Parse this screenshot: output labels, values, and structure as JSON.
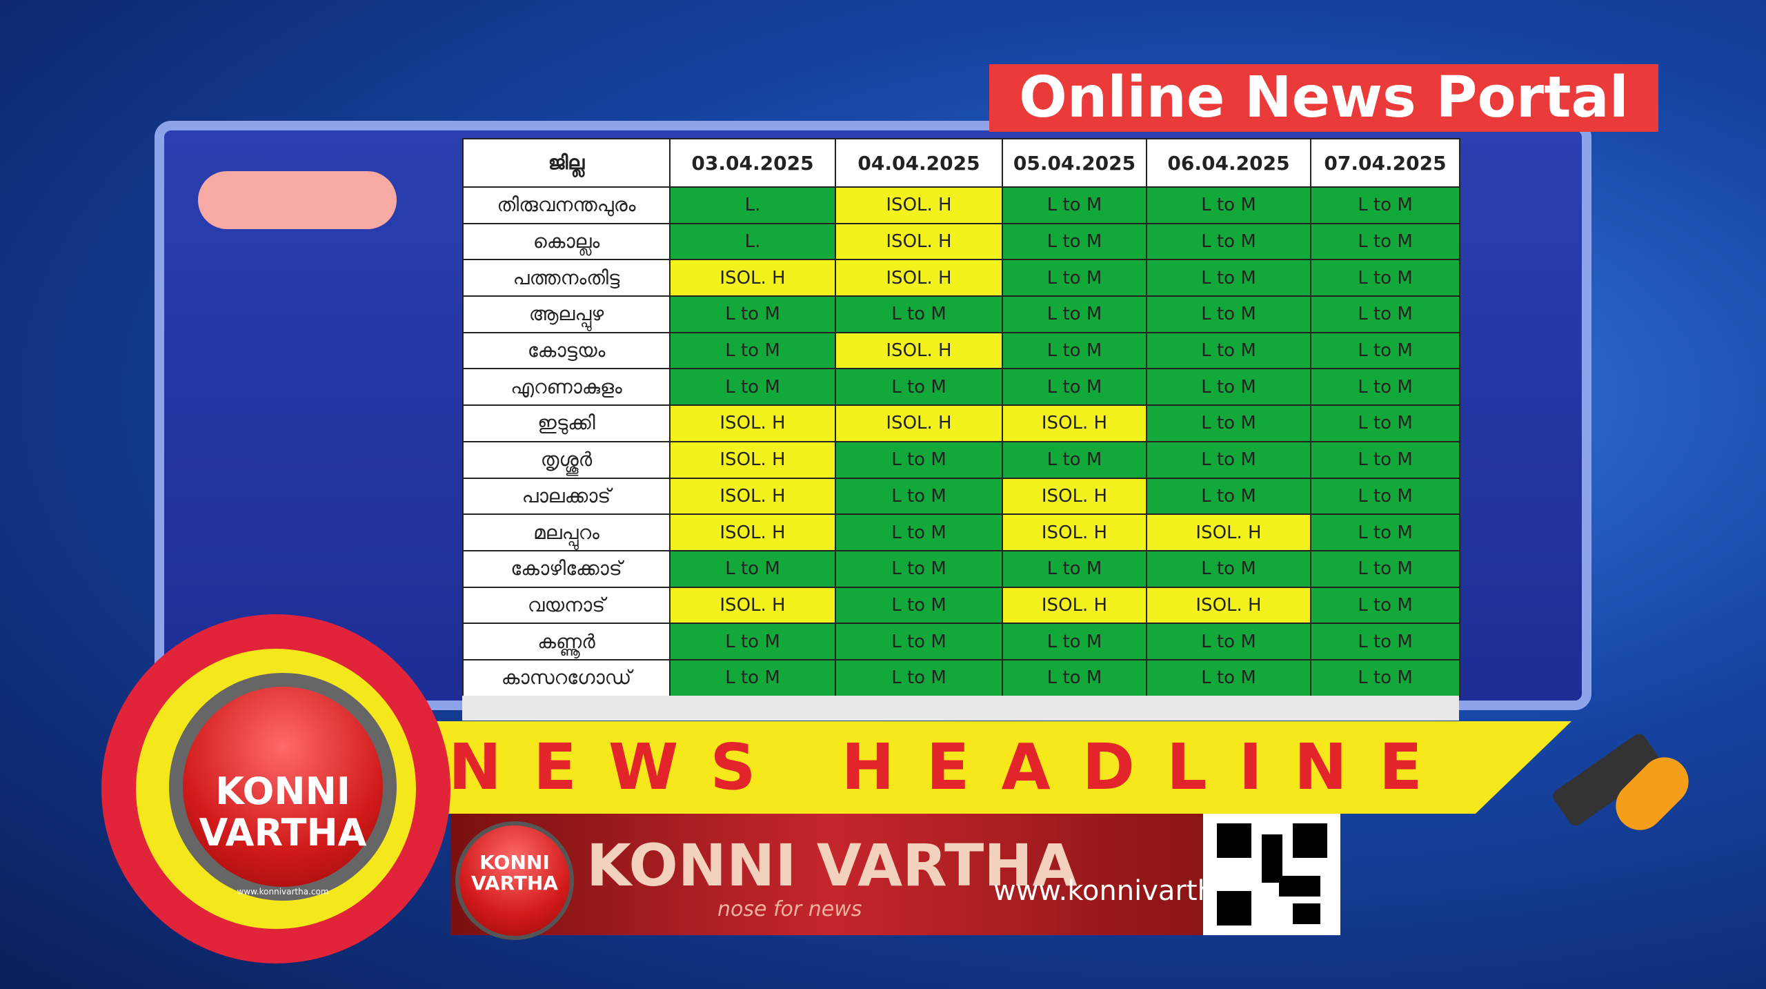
{
  "header": {
    "title": "Online News Portal"
  },
  "table": {
    "columns": [
      "ജില്ല",
      "03.04.2025",
      "04.04.2025",
      "05.04.2025",
      "06.04.2025",
      "07.04.2025"
    ],
    "colors": {
      "green": "#13a83a",
      "yellow": "#f4f21c"
    },
    "rows": [
      {
        "district": "തിരുവനന്തപുരം",
        "cells": [
          "L.",
          "ISOL. H",
          "L to M",
          "L to M",
          "L to M"
        ],
        "fills": [
          "green",
          "yellow",
          "green",
          "green",
          "green"
        ]
      },
      {
        "district": "കൊല്ലം",
        "cells": [
          "L.",
          "ISOL. H",
          "L to M",
          "L to M",
          "L to M"
        ],
        "fills": [
          "green",
          "yellow",
          "green",
          "green",
          "green"
        ]
      },
      {
        "district": "പത്തനംതിട്ട",
        "cells": [
          "ISOL. H",
          "ISOL. H",
          "L to M",
          "L to M",
          "L to M"
        ],
        "fills": [
          "yellow",
          "yellow",
          "green",
          "green",
          "green"
        ]
      },
      {
        "district": "ആലപ്പുഴ",
        "cells": [
          "L to M",
          "L to M",
          "L to M",
          "L to M",
          "L to M"
        ],
        "fills": [
          "green",
          "green",
          "green",
          "green",
          "green"
        ]
      },
      {
        "district": "കോട്ടയം",
        "cells": [
          "L to M",
          "ISOL. H",
          "L to M",
          "L to M",
          "L to M"
        ],
        "fills": [
          "green",
          "yellow",
          "green",
          "green",
          "green"
        ]
      },
      {
        "district": "എറണാകുളം",
        "cells": [
          "L to M",
          "L to M",
          "L to M",
          "L to M",
          "L to M"
        ],
        "fills": [
          "green",
          "green",
          "green",
          "green",
          "green"
        ]
      },
      {
        "district": "ഇടുക്കി",
        "cells": [
          "ISOL. H",
          "ISOL. H",
          "ISOL. H",
          "L to M",
          "L to M"
        ],
        "fills": [
          "yellow",
          "yellow",
          "yellow",
          "green",
          "green"
        ]
      },
      {
        "district": "തൃശ്ശൂർ",
        "cells": [
          "ISOL. H",
          "L to M",
          "L to M",
          "L to M",
          "L to M"
        ],
        "fills": [
          "yellow",
          "green",
          "green",
          "green",
          "green"
        ]
      },
      {
        "district": "പാലക്കാട്",
        "cells": [
          "ISOL. H",
          "L to M",
          "ISOL. H",
          "L to M",
          "L to M"
        ],
        "fills": [
          "yellow",
          "green",
          "yellow",
          "green",
          "green"
        ]
      },
      {
        "district": "മലപ്പുറം",
        "cells": [
          "ISOL. H",
          "L to M",
          "ISOL. H",
          "ISOL. H",
          "L to M"
        ],
        "fills": [
          "yellow",
          "green",
          "yellow",
          "yellow",
          "green"
        ]
      },
      {
        "district": "കോഴിക്കോട്",
        "cells": [
          "L to M",
          "L to M",
          "L to M",
          "L to M",
          "L to M"
        ],
        "fills": [
          "green",
          "green",
          "green",
          "green",
          "green"
        ]
      },
      {
        "district": "വയനാട്",
        "cells": [
          "ISOL. H",
          "L to M",
          "ISOL. H",
          "ISOL. H",
          "L to M"
        ],
        "fills": [
          "yellow",
          "green",
          "yellow",
          "yellow",
          "green"
        ]
      },
      {
        "district": "കണ്ണൂർ",
        "cells": [
          "L to M",
          "L to M",
          "L to M",
          "L to M",
          "L to M"
        ],
        "fills": [
          "green",
          "green",
          "green",
          "green",
          "green"
        ]
      },
      {
        "district": "കാസറഗോഡ്",
        "cells": [
          "L to M",
          "L to M",
          "L to M",
          "L to M",
          "L to M"
        ],
        "fills": [
          "green",
          "green",
          "green",
          "green",
          "green"
        ]
      }
    ]
  },
  "banner": {
    "headline": "NEWS HEADLINE",
    "brand": "KONNI VARTHA",
    "tagline": "nose for news",
    "url": "www.konnivartha.com"
  },
  "logo": {
    "line1": "KONNI",
    "line2": "VARTHA",
    "url": "www.konnivartha.com"
  }
}
